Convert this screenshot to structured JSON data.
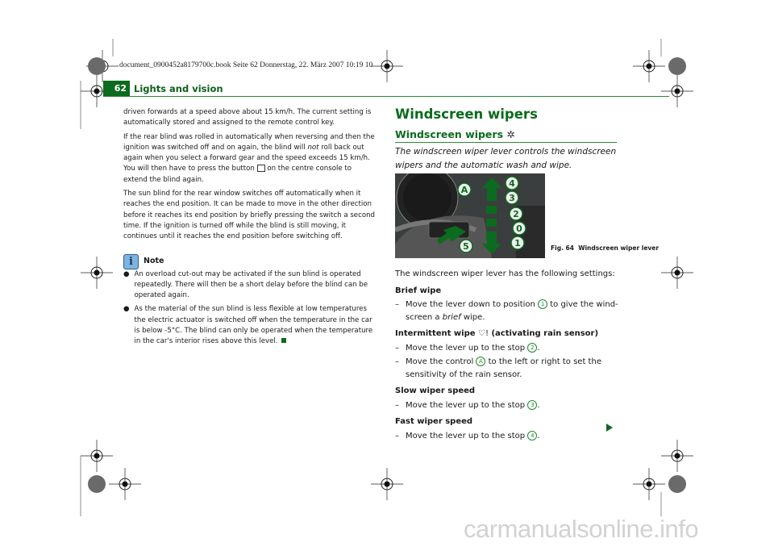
{
  "header": {
    "file_line": "document_0900452a8179700c.book  Seite 62  Donnerstag, 22. März 2007  10:19 10"
  },
  "page": {
    "number": "62",
    "chapter": "Lights and vision"
  },
  "left_column": {
    "paragraphs": [
      "driven forwards at a speed above about 15 km/h. The current setting is automatically stored and assigned to the remote control key.",
      "The sun blind for the rear window switches off automatically when it reaches the end position. It can be made to move in the other direction before it reaches its end position by briefly pressing the switch a second time. If the ignition is turned off while the blind is still moving, it continues until it reaches the end position before switching off."
    ],
    "para2": {
      "a": "If the rear blind was rolled in automatically when reversing and then the ignition was switched off and on again, the blind will ",
      "em": "not",
      "b": " roll back out again when you select a forward gear and the speed exceeds 15 km/h. You will then have to press the button ",
      "c": " on the centre console to extend the blind again."
    },
    "note": {
      "title": "Note",
      "bullets": [
        "An overload cut-out may be activated if the sun blind is operated repeatedly. There will then be a short delay before the blind can be operated again.",
        "As the material of the sun blind is less flexible at low temperatures the electric actuator is switched off when the temperature in the car is below -5°C. The blind can only be operated when the temperature in the car's interior rises above this level."
      ]
    }
  },
  "right_column": {
    "title": "Windscreen wipers",
    "subtitle": "Windscreen wipers",
    "intro": "The windscreen wiper lever controls the windscreen wipers and the automatic wash and wipe.",
    "figure": {
      "labels": [
        "A",
        "4",
        "3",
        "2",
        "0",
        "1",
        "5"
      ],
      "caption_num": "Fig. 64",
      "caption": "Windscreen wiper lever"
    },
    "lead": "The windscreen wiper lever has the following settings:",
    "brief": {
      "title": "Brief wipe",
      "a": "Move the lever down to position ",
      "pos": "1",
      "b": " to give the wind-screen a ",
      "em": "brief",
      "c": " wipe."
    },
    "intermittent": {
      "title": "Intermittent wipe",
      "title_suffix": " (activating rain sensor)",
      "step1a": "Move the lever up to the stop ",
      "pos1": "2",
      "step2a": "Move the control ",
      "pos2": "A",
      "step2b": " to the left or right to set the sensitivity of the rain sensor."
    },
    "slow": {
      "title": "Slow wiper speed",
      "a": "Move the lever up to the stop ",
      "pos": "3"
    },
    "fast": {
      "title": "Fast wiper speed",
      "a": "Move the lever up to the stop ",
      "pos": "4"
    },
    "dash": "–"
  },
  "watermark": "carmanualsonline.info",
  "colors": {
    "accent": "#0b6b1e",
    "rule": "#2a8a35"
  }
}
